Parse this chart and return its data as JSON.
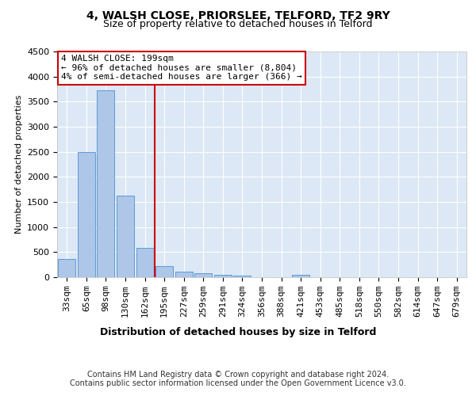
{
  "title1": "4, WALSH CLOSE, PRIORSLEE, TELFORD, TF2 9RY",
  "title2": "Size of property relative to detached houses in Telford",
  "xlabel": "Distribution of detached houses by size in Telford",
  "ylabel": "Number of detached properties",
  "categories": [
    "33sqm",
    "65sqm",
    "98sqm",
    "130sqm",
    "162sqm",
    "195sqm",
    "227sqm",
    "259sqm",
    "291sqm",
    "324sqm",
    "356sqm",
    "388sqm",
    "421sqm",
    "453sqm",
    "485sqm",
    "518sqm",
    "550sqm",
    "582sqm",
    "614sqm",
    "647sqm",
    "679sqm"
  ],
  "values": [
    360,
    2500,
    3720,
    1630,
    590,
    225,
    105,
    75,
    50,
    35,
    0,
    0,
    55,
    0,
    0,
    0,
    0,
    0,
    0,
    0,
    0
  ],
  "bar_color": "#aec6e8",
  "bar_edge_color": "#5b9bd5",
  "vline_color": "#cc0000",
  "annotation_text": "4 WALSH CLOSE: 199sqm\n← 96% of detached houses are smaller (8,804)\n4% of semi-detached houses are larger (366) →",
  "annotation_box_color": "#ffffff",
  "annotation_box_edge": "#cc0000",
  "ylim": [
    0,
    4500
  ],
  "yticks": [
    0,
    500,
    1000,
    1500,
    2000,
    2500,
    3000,
    3500,
    4000,
    4500
  ],
  "footer": "Contains HM Land Registry data © Crown copyright and database right 2024.\nContains public sector information licensed under the Open Government Licence v3.0.",
  "plot_bg_color": "#dce8f5",
  "title1_fontsize": 10,
  "title2_fontsize": 9,
  "xlabel_fontsize": 9,
  "ylabel_fontsize": 8,
  "tick_fontsize": 8,
  "footer_fontsize": 7,
  "annot_fontsize": 8
}
